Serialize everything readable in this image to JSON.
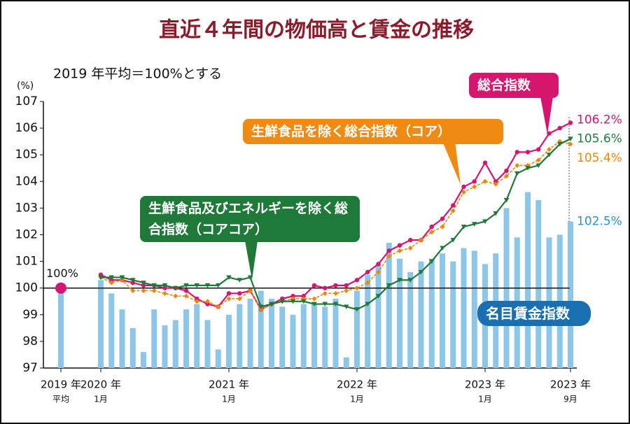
{
  "chart_data": {
    "type": "bar-line",
    "title": "直近４年間の物価高と賃金の推移",
    "subtitle": "2019 年平均＝100%とする",
    "y_label": "(%)",
    "ylim": [
      97,
      107
    ],
    "yticks": [
      97,
      98,
      99,
      100,
      101,
      102,
      103,
      104,
      105,
      106,
      107
    ],
    "reference_line": 100,
    "reference_point": {
      "value": 100,
      "label": "100%",
      "color": "#d6156f"
    },
    "categories": [
      "2019 年",
      "2020 年",
      null,
      null,
      null,
      null,
      null,
      null,
      null,
      null,
      null,
      null,
      null,
      "2021 年",
      null,
      null,
      null,
      null,
      null,
      null,
      null,
      null,
      null,
      null,
      null,
      "2022 年",
      null,
      null,
      null,
      null,
      null,
      null,
      null,
      null,
      null,
      null,
      null,
      "2023 年",
      null,
      null,
      null,
      null,
      null,
      null,
      null,
      "2023 年"
    ],
    "category_sublabels": [
      "平均",
      "1月",
      null,
      null,
      null,
      null,
      null,
      null,
      null,
      null,
      null,
      null,
      null,
      "1月",
      null,
      null,
      null,
      null,
      null,
      null,
      null,
      null,
      null,
      null,
      null,
      "1月",
      null,
      null,
      null,
      null,
      null,
      null,
      null,
      null,
      null,
      null,
      null,
      "1月",
      null,
      null,
      null,
      null,
      null,
      null,
      null,
      "9月"
    ],
    "series": [
      {
        "name": "名目賃金指数",
        "type": "bar",
        "color": "#8cc6e8",
        "label_color": "#2a8fd0",
        "legend_color": "#1a6fb0",
        "values": [
          100,
          100.3,
          99.8,
          99.2,
          98.5,
          97.6,
          99.2,
          98.6,
          98.8,
          99.2,
          99.4,
          98.8,
          97.7,
          99.0,
          99.4,
          99.6,
          99.9,
          99.6,
          99.3,
          99.0,
          99.4,
          99.4,
          99.3,
          99.6,
          97.4,
          99.9,
          100.5,
          100.9,
          101.7,
          101.1,
          100.6,
          101.0,
          101.1,
          101.3,
          101.0,
          101.5,
          101.4,
          100.9,
          101.3,
          103.0,
          101.9,
          103.6,
          103.3,
          101.9,
          102.0,
          102.5
        ],
        "value_labels": [
          null,
          null,
          null,
          null,
          null,
          null,
          null,
          null,
          null,
          null,
          null,
          null,
          null,
          null,
          null,
          null,
          null,
          null,
          null,
          null,
          null,
          null,
          null,
          null,
          null,
          null,
          null,
          null,
          null,
          null,
          null,
          null,
          null,
          null,
          null,
          null,
          null,
          null,
          null,
          null,
          null,
          null,
          null,
          null,
          null,
          "102.5%"
        ]
      },
      {
        "name": "総合指数",
        "type": "line",
        "marker": "circle",
        "color": "#d6156f",
        "label_color": "#d6156f",
        "legend_color": "#d6156f",
        "values": [
          null,
          100.5,
          100.3,
          100.3,
          100.2,
          100.1,
          100.1,
          100.0,
          100.0,
          99.9,
          99.6,
          99.4,
          99.3,
          99.8,
          99.8,
          99.9,
          99.2,
          99.4,
          99.6,
          99.7,
          99.7,
          100.1,
          100.0,
          100.1,
          100.1,
          100.3,
          100.6,
          100.9,
          101.4,
          101.6,
          101.8,
          101.8,
          102.3,
          102.6,
          103.1,
          103.8,
          104.0,
          104.7,
          104.0,
          104.4,
          105.1,
          105.1,
          105.2,
          105.8,
          106.0,
          106.2
        ],
        "value_labels": [
          null,
          null,
          null,
          null,
          null,
          null,
          null,
          null,
          null,
          null,
          null,
          null,
          null,
          null,
          null,
          null,
          null,
          null,
          null,
          null,
          null,
          null,
          null,
          null,
          null,
          null,
          null,
          null,
          null,
          null,
          null,
          null,
          null,
          null,
          null,
          null,
          null,
          null,
          null,
          null,
          null,
          null,
          null,
          null,
          null,
          "106.2%"
        ]
      },
      {
        "name": "生鮮食品を除く総合指数（コア）",
        "type": "line",
        "marker": "diamond",
        "dashed": true,
        "color": "#e8890c",
        "label_color": "#e8890c",
        "legend_color": "#ef8a12",
        "values": [
          null,
          100.4,
          100.2,
          100.3,
          99.9,
          99.9,
          99.9,
          99.8,
          99.7,
          99.7,
          99.5,
          99.5,
          99.3,
          99.6,
          99.6,
          99.9,
          99.2,
          99.4,
          99.5,
          99.6,
          99.6,
          99.6,
          99.8,
          99.8,
          99.9,
          100.0,
          100.2,
          100.6,
          101.2,
          101.4,
          101.5,
          101.8,
          102.1,
          102.3,
          102.9,
          103.6,
          103.8,
          104.0,
          103.9,
          104.2,
          104.6,
          104.6,
          104.8,
          105.2,
          105.5,
          105.4
        ],
        "value_labels": [
          null,
          null,
          null,
          null,
          null,
          null,
          null,
          null,
          null,
          null,
          null,
          null,
          null,
          null,
          null,
          null,
          null,
          null,
          null,
          null,
          null,
          null,
          null,
          null,
          null,
          null,
          null,
          null,
          null,
          null,
          null,
          null,
          null,
          null,
          null,
          null,
          null,
          null,
          null,
          null,
          null,
          null,
          null,
          null,
          null,
          "105.4%"
        ]
      },
      {
        "name": "生鮮食品及びエネルギーを除く総合指数（コアコア）",
        "type": "line",
        "marker": "triangle",
        "color": "#1f7a3a",
        "label_color": "#1f7a3a",
        "legend_color": "#1f7a3a",
        "values": [
          null,
          100.4,
          100.4,
          100.4,
          100.3,
          100.2,
          100.1,
          100.1,
          100.0,
          100.1,
          100.1,
          100.1,
          100.1,
          100.4,
          100.3,
          100.4,
          99.3,
          99.4,
          99.5,
          99.5,
          99.5,
          99.4,
          99.4,
          99.4,
          99.3,
          99.2,
          99.4,
          99.7,
          100.1,
          100.3,
          100.3,
          100.6,
          101.0,
          101.5,
          101.8,
          102.3,
          102.4,
          102.5,
          102.8,
          103.3,
          104.3,
          104.5,
          104.6,
          105.0,
          105.4,
          105.6
        ],
        "value_labels": [
          null,
          null,
          null,
          null,
          null,
          null,
          null,
          null,
          null,
          null,
          null,
          null,
          null,
          null,
          null,
          null,
          null,
          null,
          null,
          null,
          null,
          null,
          null,
          null,
          null,
          null,
          null,
          null,
          null,
          null,
          null,
          null,
          null,
          null,
          null,
          null,
          null,
          null,
          null,
          null,
          null,
          null,
          null,
          null,
          null,
          "105.6%"
        ]
      }
    ]
  }
}
